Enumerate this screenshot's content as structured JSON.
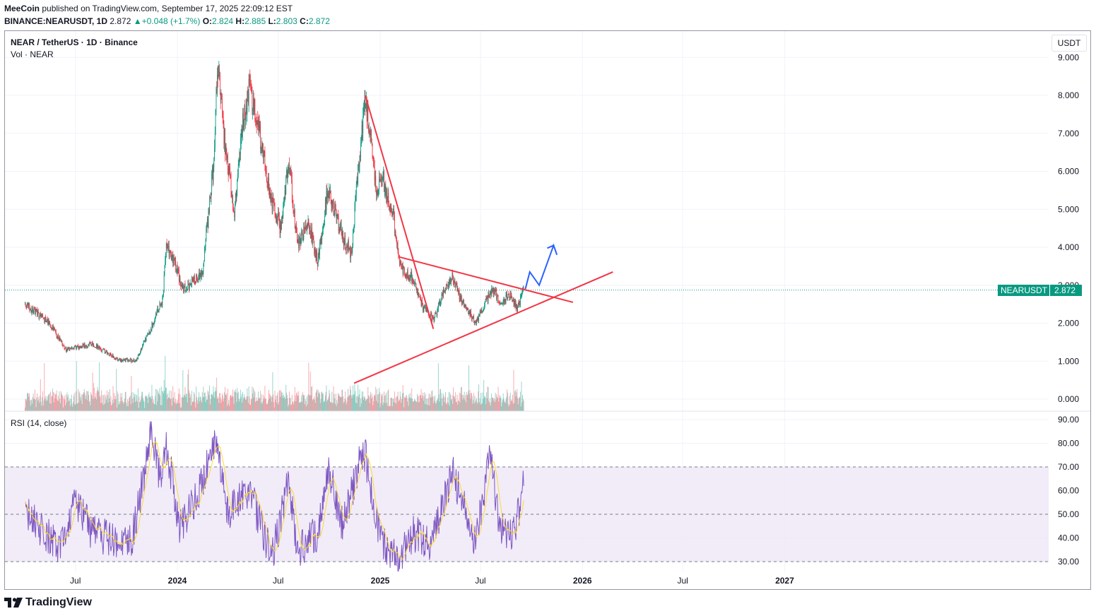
{
  "header": {
    "author": "MeeCoin",
    "published_text": "published on TradingView.com, September 17, 2025 22:09:12 EST",
    "symbol": "BINANCE:NEARUSDT, 1D",
    "last": "2.872",
    "change": "+0.048 (+1.7%)",
    "open_label": "O:",
    "open": "2.824",
    "high_label": "H:",
    "high": "2.885",
    "low_label": "L:",
    "low": "2.803",
    "close_label": "C:",
    "close": "2.872"
  },
  "main_pane": {
    "title": "NEAR / TetherUS · 1D · Binance",
    "volume_label": "Vol · NEAR",
    "unit": "USDT",
    "price_tag_symbol": "NEARUSDT",
    "price_tag_value": "2.872",
    "price_ticks": [
      "0.000",
      "1.000",
      "2.000",
      "3.000",
      "4.000",
      "5.000",
      "6.000",
      "7.000",
      "8.000",
      "9.000"
    ]
  },
  "rsi_pane": {
    "title": "RSI (14, close)",
    "ticks": [
      "30.00",
      "40.00",
      "50.00",
      "60.00",
      "70.00",
      "80.00",
      "90.00"
    ]
  },
  "time_axis": {
    "labels": [
      {
        "text": "Jul",
        "bold": false
      },
      {
        "text": "2024",
        "bold": true
      },
      {
        "text": "Jul",
        "bold": false
      },
      {
        "text": "2025",
        "bold": true
      },
      {
        "text": "Jul",
        "bold": false
      },
      {
        "text": "2026",
        "bold": true
      },
      {
        "text": "Jul",
        "bold": false
      },
      {
        "text": "2027",
        "bold": true
      }
    ]
  },
  "brand": {
    "name": "TradingView"
  },
  "colors": {
    "up": "#089981",
    "down": "#f23645",
    "trendline": "#f23645",
    "projection": "#2962ff",
    "rsi": "#7e57c2",
    "rsi_ma": "#fdd835",
    "rsi_band": "#ede7f6"
  },
  "chart_data": [
    {
      "type": "candlestick",
      "title": "NEAR / TetherUS · 1D · Binance",
      "ylim": [
        0,
        9
      ],
      "anchors": [
        {
          "date": "2023-04-01",
          "price": 2.5
        },
        {
          "date": "2023-05-15",
          "price": 2.0
        },
        {
          "date": "2023-06-15",
          "price": 1.3
        },
        {
          "date": "2023-08-01",
          "price": 1.45
        },
        {
          "date": "2023-09-15",
          "price": 1.05
        },
        {
          "date": "2023-10-18",
          "price": 1.0
        },
        {
          "date": "2023-11-15",
          "price": 1.9
        },
        {
          "date": "2023-12-05",
          "price": 2.6
        },
        {
          "date": "2023-12-12",
          "price": 4.0
        },
        {
          "date": "2023-12-30",
          "price": 3.5
        },
        {
          "date": "2024-01-10",
          "price": 2.9
        },
        {
          "date": "2024-02-15",
          "price": 3.3
        },
        {
          "date": "2024-03-05",
          "price": 6.0
        },
        {
          "date": "2024-03-14",
          "price": 8.8
        },
        {
          "date": "2024-03-28",
          "price": 6.5
        },
        {
          "date": "2024-04-13",
          "price": 5.0
        },
        {
          "date": "2024-04-25",
          "price": 7.0
        },
        {
          "date": "2024-05-10",
          "price": 8.2
        },
        {
          "date": "2024-05-25",
          "price": 7.3
        },
        {
          "date": "2024-06-15",
          "price": 5.5
        },
        {
          "date": "2024-07-05",
          "price": 4.5
        },
        {
          "date": "2024-07-20",
          "price": 6.3
        },
        {
          "date": "2024-08-05",
          "price": 4.0
        },
        {
          "date": "2024-08-25",
          "price": 4.7
        },
        {
          "date": "2024-09-10",
          "price": 3.6
        },
        {
          "date": "2024-09-28",
          "price": 5.5
        },
        {
          "date": "2024-10-25",
          "price": 4.3
        },
        {
          "date": "2024-11-10",
          "price": 3.8
        },
        {
          "date": "2024-11-25",
          "price": 6.5
        },
        {
          "date": "2024-12-05",
          "price": 8.0
        },
        {
          "date": "2024-12-25",
          "price": 5.6
        },
        {
          "date": "2025-01-06",
          "price": 5.8
        },
        {
          "date": "2025-01-25",
          "price": 4.8
        },
        {
          "date": "2025-02-05",
          "price": 3.5
        },
        {
          "date": "2025-02-28",
          "price": 3.2
        },
        {
          "date": "2025-03-20",
          "price": 2.4
        },
        {
          "date": "2025-04-08",
          "price": 2.1
        },
        {
          "date": "2025-04-25",
          "price": 2.8
        },
        {
          "date": "2025-05-12",
          "price": 3.2
        },
        {
          "date": "2025-05-25",
          "price": 2.7
        },
        {
          "date": "2025-06-22",
          "price": 2.0
        },
        {
          "date": "2025-07-12",
          "price": 2.6
        },
        {
          "date": "2025-07-25",
          "price": 2.9
        },
        {
          "date": "2025-08-05",
          "price": 2.5
        },
        {
          "date": "2025-08-25",
          "price": 2.8
        },
        {
          "date": "2025-09-05",
          "price": 2.4
        },
        {
          "date": "2025-09-17",
          "price": 2.872
        }
      ],
      "last_price": 2.872
    },
    {
      "type": "line",
      "title": "RSI (14, close)",
      "ylim": [
        25,
        93
      ],
      "bands": [
        30,
        50,
        70
      ],
      "anchors": [
        {
          "date": "2023-04-01",
          "value": 50
        },
        {
          "date": "2023-05-01",
          "value": 44
        },
        {
          "date": "2023-06-01",
          "value": 35
        },
        {
          "date": "2023-07-01",
          "value": 55
        },
        {
          "date": "2023-08-01",
          "value": 42
        },
        {
          "date": "2023-09-01",
          "value": 40
        },
        {
          "date": "2023-10-10",
          "value": 38
        },
        {
          "date": "2023-11-05",
          "value": 70
        },
        {
          "date": "2023-11-14",
          "value": 88
        },
        {
          "date": "2023-12-01",
          "value": 65
        },
        {
          "date": "2023-12-12",
          "value": 80
        },
        {
          "date": "2024-01-05",
          "value": 45
        },
        {
          "date": "2024-02-01",
          "value": 55
        },
        {
          "date": "2024-03-12",
          "value": 82
        },
        {
          "date": "2024-04-01",
          "value": 50
        },
        {
          "date": "2024-05-10",
          "value": 60
        },
        {
          "date": "2024-06-20",
          "value": 32
        },
        {
          "date": "2024-07-20",
          "value": 65
        },
        {
          "date": "2024-08-05",
          "value": 35
        },
        {
          "date": "2024-09-10",
          "value": 42
        },
        {
          "date": "2024-10-01",
          "value": 68
        },
        {
          "date": "2024-10-25",
          "value": 45
        },
        {
          "date": "2024-11-25",
          "value": 72
        },
        {
          "date": "2024-12-05",
          "value": 75
        },
        {
          "date": "2025-01-01",
          "value": 40
        },
        {
          "date": "2025-02-03",
          "value": 30
        },
        {
          "date": "2025-03-01",
          "value": 42
        },
        {
          "date": "2025-04-05",
          "value": 38
        },
        {
          "date": "2025-05-12",
          "value": 68
        },
        {
          "date": "2025-06-22",
          "value": 38
        },
        {
          "date": "2025-07-18",
          "value": 75
        },
        {
          "date": "2025-08-05",
          "value": 45
        },
        {
          "date": "2025-09-01",
          "value": 42
        },
        {
          "date": "2025-09-17",
          "value": 62
        }
      ]
    }
  ],
  "drawings": {
    "descending_line": {
      "start": {
        "date": "2024-12-05",
        "price": 8.0
      },
      "end": {
        "date": "2025-04-07",
        "price": 1.85
      }
    },
    "triangle_upper": {
      "start": {
        "date": "2025-02-03",
        "price": 3.75
      },
      "end": {
        "date": "2025-12-15",
        "price": 2.55
      }
    },
    "triangle_lower": {
      "start": {
        "date": "2024-11-15",
        "price": 0.42
      },
      "end": {
        "date": "2026-02-25",
        "price": 3.35
      }
    },
    "projection_path": [
      {
        "date": "2025-09-20",
        "price": 2.9
      },
      {
        "date": "2025-09-28",
        "price": 3.35
      },
      {
        "date": "2025-10-15",
        "price": 3.0
      },
      {
        "date": "2025-11-10",
        "price": 4.05
      },
      {
        "date": "2025-11-16",
        "price": 3.8
      }
    ]
  }
}
